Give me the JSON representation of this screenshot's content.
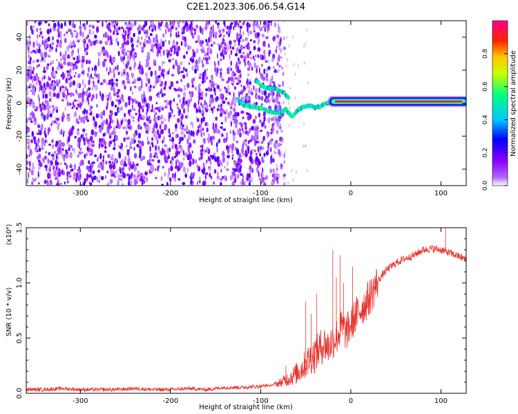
{
  "figure": {
    "title": "C2E1.2023.306.06.54.G14"
  },
  "chart_data": [
    {
      "type": "heatmap",
      "title": "C2E1.2023.306.06.54.G14",
      "xlabel": "Height of straight line (km)",
      "ylabel": "Frequency (Hz)",
      "xlim": [
        -360,
        128
      ],
      "ylim": [
        -50,
        50
      ],
      "xticks": [
        -300,
        -200,
        -100,
        0,
        100
      ],
      "yticks": [
        -40,
        -20,
        0,
        20,
        40
      ],
      "grid": false,
      "colorbar": {
        "label": "Normalized spectral amplitude",
        "range": [
          0.0,
          1.0
        ],
        "ticks": [
          0.0,
          0.2,
          0.4,
          0.6,
          0.8
        ],
        "tick_labels": [
          "0.0",
          "0.2",
          "0.4",
          "0.6",
          "0.8"
        ],
        "colors": [
          "#ffffff",
          "#8c00ff",
          "#0000ff",
          "#00c8ff",
          "#00ff80",
          "#ffff00",
          "#ff2000",
          "#ff00a0"
        ]
      },
      "noise_region_x": [
        -360,
        -78
      ],
      "signal_ridge": [
        {
          "x": -125,
          "y": 2
        },
        {
          "x": -118,
          "y": -1
        },
        {
          "x": -110,
          "y": -2
        },
        {
          "x": -100,
          "y": -3
        },
        {
          "x": -90,
          "y": -5
        },
        {
          "x": -80,
          "y": -6
        },
        {
          "x": -72,
          "y": -4
        },
        {
          "x": -65,
          "y": -8
        },
        {
          "x": -58,
          "y": -4
        },
        {
          "x": -52,
          "y": -2
        },
        {
          "x": -46,
          "y": -1
        },
        {
          "x": -40,
          "y": -3
        },
        {
          "x": -34,
          "y": -2
        },
        {
          "x": -28,
          "y": 0
        },
        {
          "x": -20,
          "y": 1
        },
        {
          "x": 0,
          "y": 1
        },
        {
          "x": 40,
          "y": 1
        },
        {
          "x": 80,
          "y": 1
        },
        {
          "x": 105,
          "y": 0
        },
        {
          "x": 128,
          "y": 1
        }
      ],
      "upper_branch": [
        {
          "x": -105,
          "y": 14
        },
        {
          "x": -98,
          "y": 10
        },
        {
          "x": -90,
          "y": 9
        },
        {
          "x": -80,
          "y": 8
        },
        {
          "x": -74,
          "y": 6
        },
        {
          "x": -68,
          "y": 3
        }
      ],
      "tone": {
        "x_start": -22,
        "x_end": 128,
        "frequency_hz": 1,
        "amplitude": 0.95
      }
    },
    {
      "type": "line",
      "xlabel": "Height of straight line (km)",
      "ylabel": "SNR (10 * v/v)",
      "yscale_label": "(x10⁴)",
      "xlim": [
        -360,
        128
      ],
      "ylim": [
        0,
        1.5
      ],
      "xticks": [
        -300,
        -200,
        -100,
        0,
        100
      ],
      "yticks": [
        0.0,
        0.5,
        1.0,
        1.5
      ],
      "ytick_labels": [
        "0.0",
        "0.5",
        "1.0",
        "1.5"
      ],
      "grid": false,
      "series": [
        {
          "color": "#e8312c",
          "x": [
            -360,
            -340,
            -320,
            -300,
            -280,
            -260,
            -240,
            -220,
            -200,
            -180,
            -160,
            -140,
            -120,
            -100,
            -90,
            -80,
            -70,
            -60,
            -55,
            -50,
            -45,
            -40,
            -35,
            -30,
            -25,
            -20,
            -15,
            -10,
            -5,
            0,
            5,
            10,
            15,
            20,
            25,
            30,
            40,
            50,
            60,
            70,
            80,
            90,
            100,
            110,
            120,
            128
          ],
          "y": [
            0.03,
            0.03,
            0.04,
            0.03,
            0.03,
            0.03,
            0.04,
            0.03,
            0.03,
            0.04,
            0.03,
            0.05,
            0.05,
            0.06,
            0.07,
            0.09,
            0.13,
            0.18,
            0.22,
            0.27,
            0.32,
            0.35,
            0.4,
            0.45,
            0.42,
            0.48,
            0.52,
            0.6,
            0.55,
            0.62,
            0.7,
            0.75,
            0.8,
            0.86,
            0.93,
            1.02,
            1.12,
            1.18,
            1.22,
            1.25,
            1.3,
            1.31,
            1.3,
            1.27,
            1.24,
            1.21
          ]
        }
      ],
      "spikes": [
        {
          "x": -72,
          "y": 0.25
        },
        {
          "x": -50,
          "y": 0.83
        },
        {
          "x": -44,
          "y": 0.72
        },
        {
          "x": -38,
          "y": 0.9
        },
        {
          "x": -20,
          "y": 1.3
        },
        {
          "x": -16,
          "y": 1.05
        },
        {
          "x": -12,
          "y": 1.25
        },
        {
          "x": -8,
          "y": 1.0
        },
        {
          "x": 2,
          "y": 1.15
        },
        {
          "x": 105,
          "y": 1.55
        }
      ]
    }
  ]
}
